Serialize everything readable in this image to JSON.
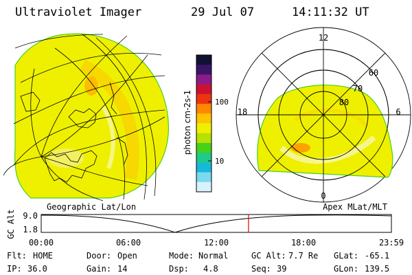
{
  "header": {
    "title": "Ultraviolet Imager",
    "date": "29 Jul 07",
    "time": "14:11:32 UT"
  },
  "colorbar": {
    "label": "photon cm-2s-1",
    "ticks": [
      "100",
      "10"
    ],
    "colors": [
      "#111133",
      "#3a1466",
      "#8b1a8a",
      "#cc1133",
      "#ee3311",
      "#ff8800",
      "#ffc400",
      "#eef000",
      "#b8e000",
      "#46d11a",
      "#1ecc88",
      "#18b8d8",
      "#7ad8f0",
      "#d8f2fb"
    ]
  },
  "map_left": {
    "fill_color": "#eef000",
    "arc_color": "#ffc400"
  },
  "polar_right": {
    "labels": {
      "top": "12",
      "left": "18",
      "right": "6",
      "bottom": "0",
      "lat60": "60",
      "lat70": "70",
      "lat80": "80"
    },
    "fill_color": "#eef000"
  },
  "timeline": {
    "left_title": "Geographic Lat/Lon",
    "right_title": "Apex MLat/MLT",
    "axis_label": "GC Alt",
    "y_top": "9.0",
    "y_bottom": "1.8",
    "x_ticks": [
      "00:00",
      "06:00",
      "12:00",
      "18:00",
      "23:59"
    ],
    "current_time_fraction": 0.592
  },
  "status": {
    "row1": [
      {
        "label": "Flt:",
        "value": "HOME"
      },
      {
        "label": "Door:",
        "value": "Open"
      },
      {
        "label": "Mode:",
        "value": "Normal"
      },
      {
        "label": "GC Alt:",
        "value": "7.7 Re"
      },
      {
        "label": "GLat:",
        "value": "-65.1"
      }
    ],
    "row2": [
      {
        "label": "IP:",
        "value": "36.0"
      },
      {
        "label": "Gain:",
        "value": "14"
      },
      {
        "label": "Dsp:",
        "value": "4.8"
      },
      {
        "label": "Seq:",
        "value": "39"
      },
      {
        "label": "GLon:",
        "value": "139.5"
      }
    ]
  }
}
